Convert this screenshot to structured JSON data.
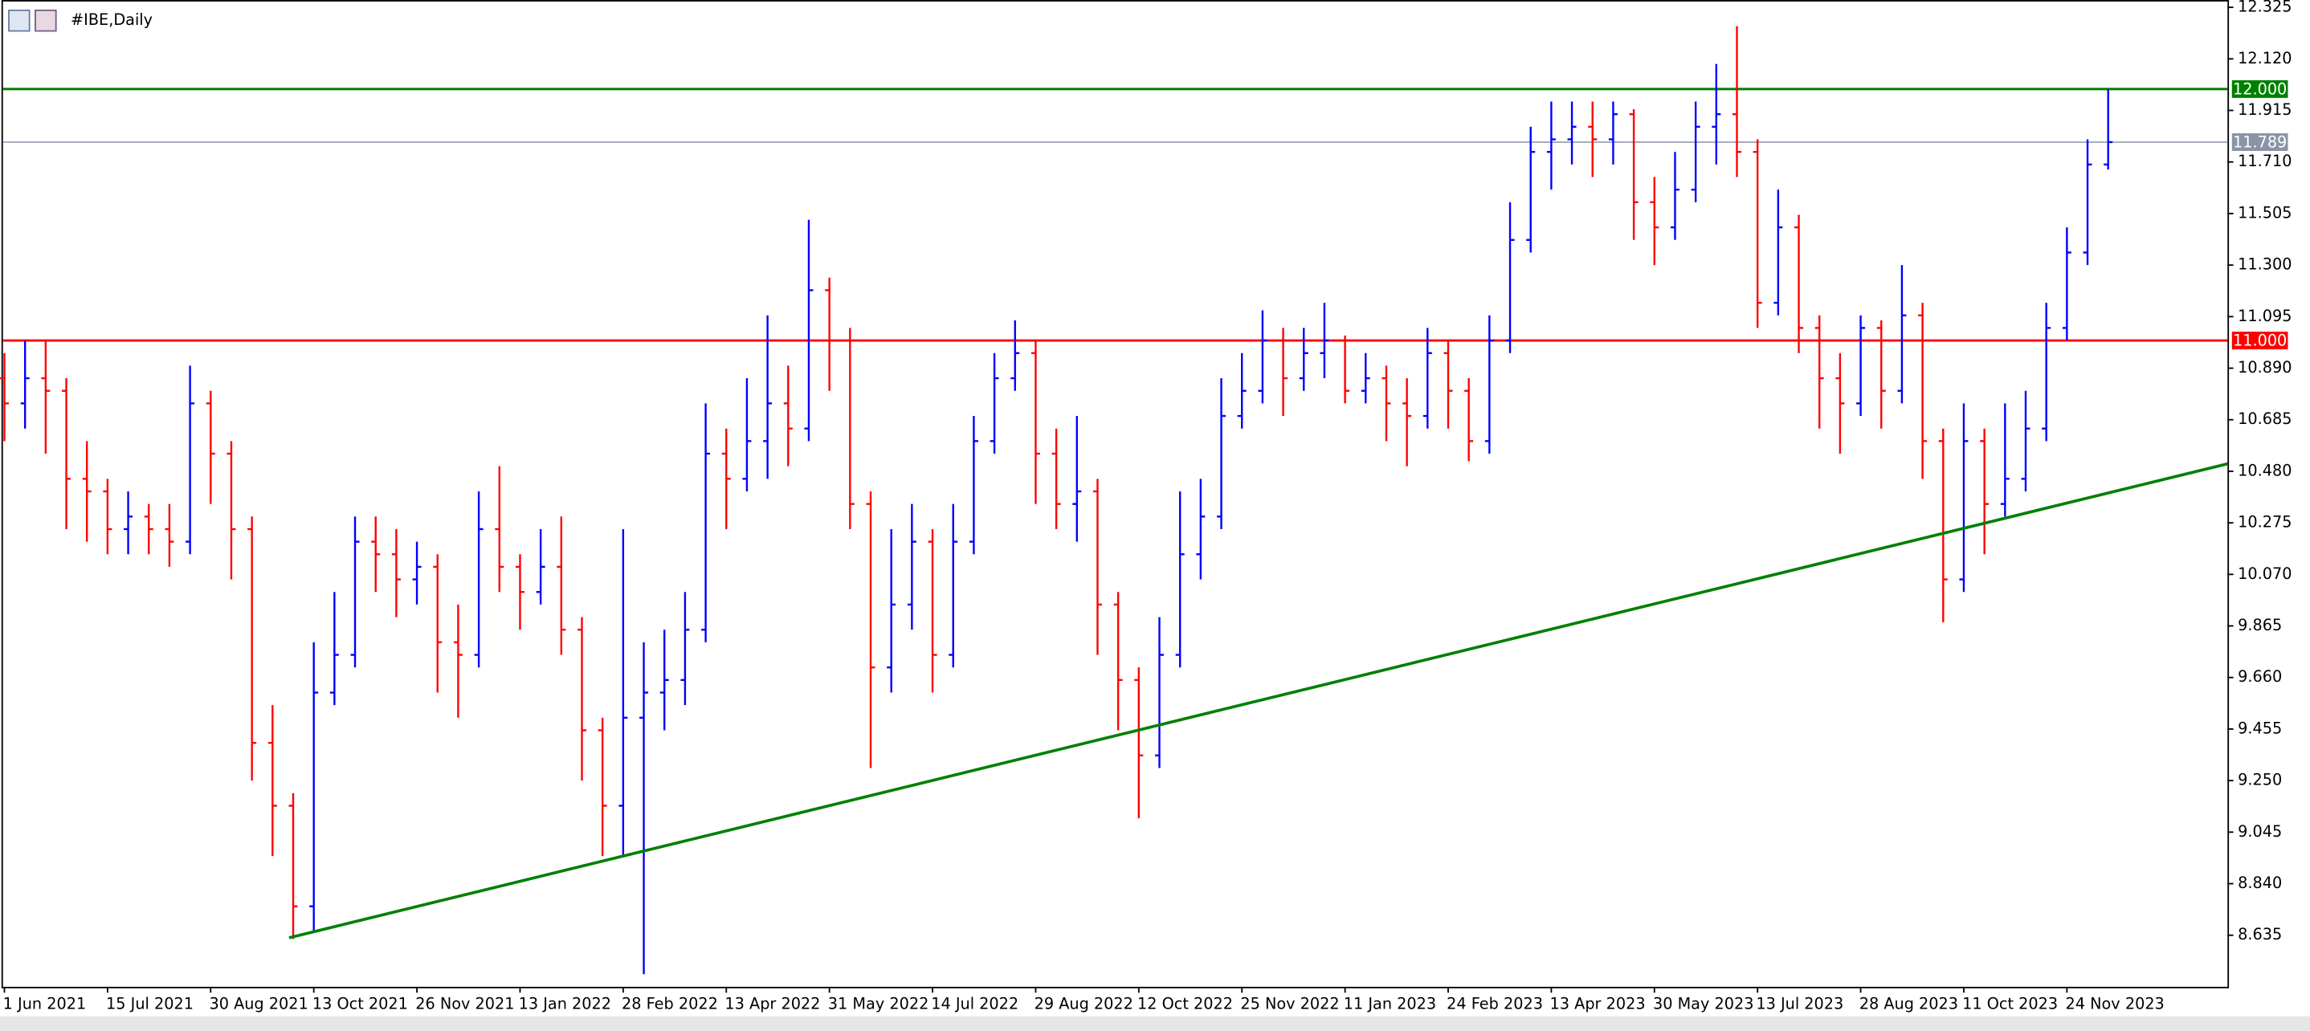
{
  "chart_data": {
    "type": "ohlc",
    "title": "#IBE,Daily",
    "categories": [
      "1 Jun 2021",
      null,
      null,
      null,
      null,
      "15 Jul 2021",
      null,
      null,
      null,
      null,
      "30 Aug 2021",
      null,
      null,
      null,
      null,
      "13 Oct 2021",
      null,
      null,
      null,
      null,
      "26 Nov 2021",
      null,
      null,
      null,
      null,
      "13 Jan 2022",
      null,
      null,
      null,
      null,
      "28 Feb 2022",
      null,
      null,
      null,
      null,
      "13 Apr 2022",
      null,
      null,
      null,
      null,
      "31 May 2022",
      null,
      null,
      null,
      null,
      "14 Jul 2022",
      null,
      null,
      null,
      null,
      "29 Aug 2022",
      null,
      null,
      null,
      null,
      "12 Oct 2022",
      null,
      null,
      null,
      null,
      "25 Nov 2022",
      null,
      null,
      null,
      null,
      "11 Jan 2023",
      null,
      null,
      null,
      null,
      "24 Feb 2023",
      null,
      null,
      null,
      null,
      "13 Apr 2023",
      null,
      null,
      null,
      null,
      "30 May 2023",
      null,
      null,
      null,
      null,
      "13 Jul 2023",
      null,
      null,
      null,
      null,
      "28 Aug 2023",
      null,
      null,
      null,
      null,
      "11 Oct 2023",
      null,
      null,
      null,
      null,
      "24 Nov 2023",
      null,
      null
    ],
    "open": [
      10.85,
      10.75,
      10.85,
      10.8,
      10.45,
      10.4,
      10.25,
      10.3,
      10.25,
      10.2,
      10.75,
      10.55,
      10.25,
      9.4,
      9.15,
      8.75,
      9.6,
      9.75,
      10.2,
      10.15,
      10.05,
      10.1,
      9.8,
      9.75,
      10.25,
      10.1,
      10.0,
      10.1,
      9.85,
      9.45,
      9.15,
      9.5,
      9.6,
      9.65,
      9.85,
      10.55,
      10.45,
      10.6,
      10.75,
      10.65,
      11.2,
      11.0,
      10.35,
      9.7,
      9.95,
      10.2,
      9.75,
      10.2,
      10.6,
      10.85,
      10.95,
      10.55,
      10.35,
      10.4,
      9.95,
      9.65,
      9.35,
      9.75,
      10.15,
      10.3,
      10.7,
      10.8,
      11.0,
      10.85,
      10.95,
      11.0,
      10.8,
      10.85,
      10.75,
      10.7,
      10.95,
      10.8,
      10.6,
      11.0,
      11.4,
      11.75,
      11.8,
      11.85,
      11.8,
      11.9,
      11.55,
      11.45,
      11.6,
      11.85,
      11.9,
      11.75,
      11.15,
      11.45,
      11.05,
      10.85,
      10.75,
      11.05,
      10.8,
      11.1,
      10.6,
      10.05,
      10.6,
      10.35,
      10.45,
      10.65,
      11.05,
      11.35,
      11.7
    ],
    "high": [
      10.95,
      11.0,
      11.0,
      10.85,
      10.6,
      10.45,
      10.4,
      10.35,
      10.35,
      10.9,
      10.8,
      10.6,
      10.3,
      9.55,
      9.2,
      9.8,
      10.0,
      10.3,
      10.3,
      10.25,
      10.2,
      10.15,
      9.95,
      10.4,
      10.5,
      10.15,
      10.25,
      10.3,
      9.9,
      9.5,
      10.25,
      9.8,
      9.85,
      10.0,
      10.75,
      10.65,
      10.85,
      11.1,
      10.9,
      11.48,
      11.25,
      11.05,
      10.4,
      10.25,
      10.35,
      10.25,
      10.35,
      10.7,
      10.95,
      11.08,
      11.0,
      10.65,
      10.7,
      10.45,
      10.0,
      9.7,
      9.9,
      10.4,
      10.45,
      10.85,
      10.95,
      11.12,
      11.05,
      11.05,
      11.15,
      11.02,
      10.95,
      10.9,
      10.85,
      11.05,
      11.0,
      10.85,
      11.1,
      11.55,
      11.85,
      11.95,
      11.95,
      11.95,
      11.95,
      11.92,
      11.65,
      11.75,
      11.95,
      12.1,
      12.25,
      11.8,
      11.6,
      11.5,
      11.1,
      10.95,
      11.1,
      11.08,
      11.3,
      11.15,
      10.65,
      10.75,
      10.65,
      10.75,
      10.8,
      11.15,
      11.45,
      11.8,
      12.0
    ],
    "low": [
      10.6,
      10.65,
      10.55,
      10.25,
      10.2,
      10.15,
      10.15,
      10.15,
      10.1,
      10.15,
      10.35,
      10.05,
      9.25,
      8.95,
      8.62,
      8.65,
      9.55,
      9.7,
      10.0,
      9.9,
      9.95,
      9.6,
      9.5,
      9.7,
      10.0,
      9.85,
      9.95,
      9.75,
      9.25,
      8.95,
      8.95,
      8.48,
      9.45,
      9.55,
      9.8,
      10.25,
      10.4,
      10.45,
      10.5,
      10.6,
      10.8,
      10.25,
      9.3,
      9.6,
      9.85,
      9.6,
      9.7,
      10.15,
      10.55,
      10.8,
      10.35,
      10.25,
      10.2,
      9.75,
      9.45,
      9.1,
      9.3,
      9.7,
      10.05,
      10.25,
      10.65,
      10.75,
      10.7,
      10.8,
      10.85,
      10.75,
      10.75,
      10.6,
      10.5,
      10.65,
      10.65,
      10.52,
      10.55,
      10.95,
      11.35,
      11.6,
      11.7,
      11.65,
      11.7,
      11.4,
      11.3,
      11.4,
      11.55,
      11.7,
      11.65,
      11.05,
      11.1,
      10.95,
      10.65,
      10.55,
      10.7,
      10.65,
      10.75,
      10.45,
      9.88,
      10.0,
      10.15,
      10.3,
      10.4,
      10.6,
      11.0,
      11.3,
      11.68
    ],
    "close": [
      10.75,
      10.85,
      10.8,
      10.45,
      10.4,
      10.25,
      10.3,
      10.25,
      10.2,
      10.75,
      10.55,
      10.25,
      9.4,
      9.15,
      8.75,
      9.6,
      9.75,
      10.2,
      10.15,
      10.05,
      10.1,
      9.8,
      9.75,
      10.25,
      10.1,
      10.0,
      10.1,
      9.85,
      9.45,
      9.15,
      9.5,
      9.6,
      9.65,
      9.85,
      10.55,
      10.45,
      10.6,
      10.75,
      10.65,
      11.2,
      11.0,
      10.35,
      9.7,
      9.95,
      10.2,
      9.75,
      10.2,
      10.6,
      10.85,
      10.95,
      10.55,
      10.35,
      10.4,
      9.95,
      9.65,
      9.35,
      9.75,
      10.15,
      10.3,
      10.7,
      10.8,
      11.0,
      10.85,
      10.95,
      11.0,
      10.8,
      10.85,
      10.75,
      10.7,
      10.95,
      10.8,
      10.6,
      11.0,
      11.4,
      11.75,
      11.8,
      11.85,
      11.8,
      11.9,
      11.55,
      11.45,
      11.6,
      11.85,
      11.9,
      11.75,
      11.15,
      11.45,
      11.05,
      10.85,
      10.75,
      11.05,
      10.8,
      11.1,
      10.6,
      10.05,
      10.6,
      10.35,
      10.45,
      10.65,
      11.05,
      11.35,
      11.7,
      11.789
    ],
    "up_color": "#0000ff",
    "down_color": "#ff0000",
    "ylim": [
      8.43,
      12.354
    ],
    "yticks": [
      12.325,
      {
        "value": 12.12,
        "label": "12.120"
      },
      11.915,
      {
        "value": 11.71,
        "label": "11.710"
      },
      11.505,
      {
        "value": 11.3,
        "label": "11.300"
      },
      11.095,
      {
        "value": 10.89,
        "label": "10.890"
      },
      10.685,
      {
        "value": 10.48,
        "label": "10.480"
      },
      10.275,
      {
        "value": 10.07,
        "label": "10.070"
      },
      9.865,
      {
        "value": 9.66,
        "label": "9.660"
      },
      9.455,
      {
        "value": 9.25,
        "label": "9.250"
      },
      9.045,
      {
        "value": 8.84,
        "label": "8.840"
      },
      8.635
    ],
    "levels": [
      {
        "value": 12,
        "label": "12.000",
        "color": "#008000"
      },
      {
        "value": 11,
        "label": "11.000",
        "color": "#ff0000"
      },
      {
        "value": 11.789,
        "label": "11.789",
        "color": "#8a94a6"
      }
    ],
    "trendline": {
      "x": [
        13.8,
        107.8
      ],
      "y": [
        8.625,
        10.51
      ],
      "color": "#008000"
    }
  }
}
